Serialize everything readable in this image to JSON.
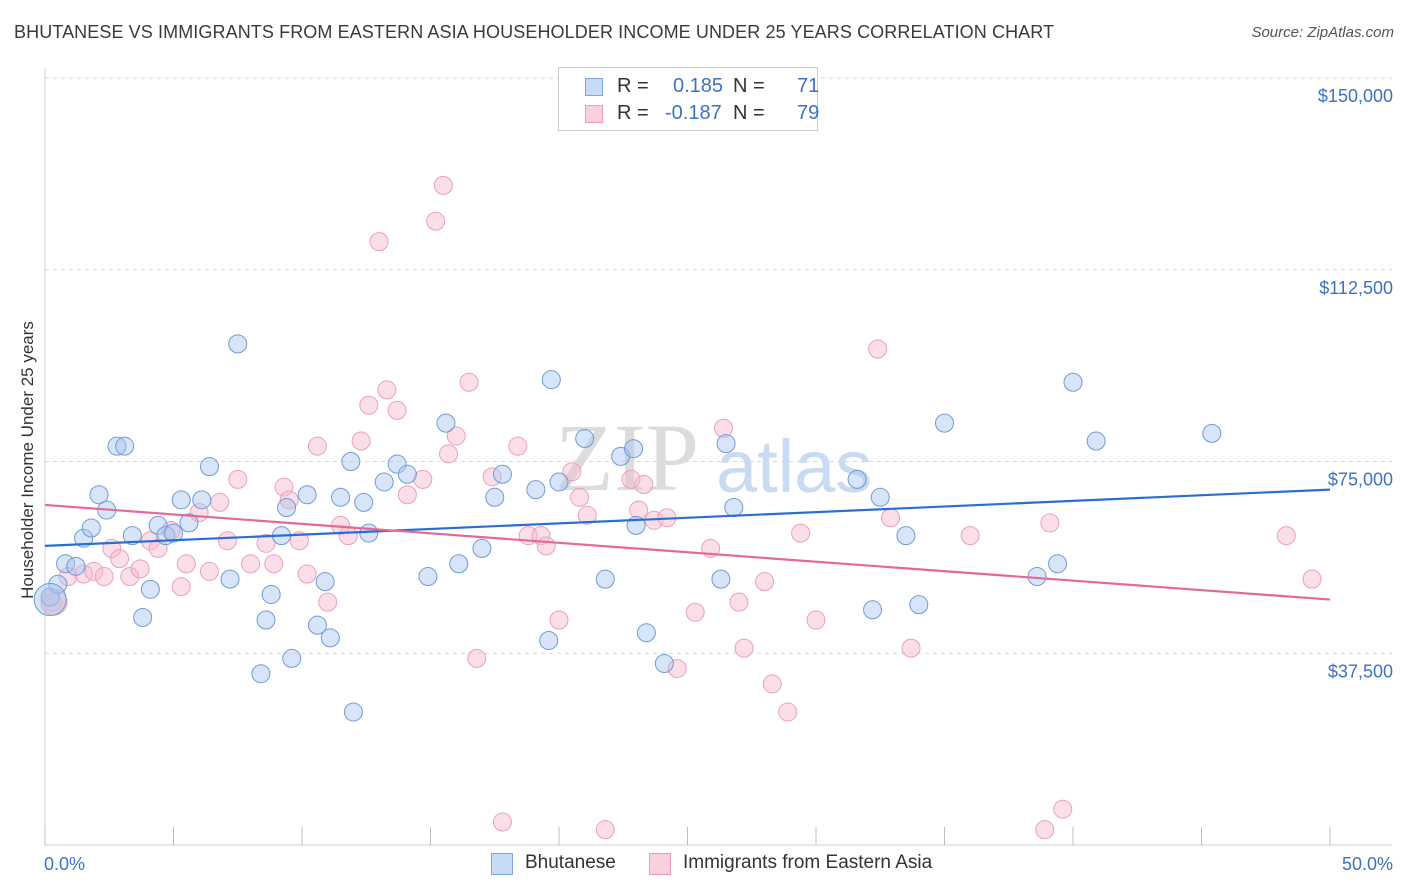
{
  "title": "BHUTANESE VS IMMIGRANTS FROM EASTERN ASIA HOUSEHOLDER INCOME UNDER 25 YEARS CORRELATION CHART",
  "source": "Source: ZipAtlas.com",
  "watermark": {
    "zip": "ZIP",
    "atlas": "atlas"
  },
  "colors": {
    "blue": "#3b73c4",
    "blue_fill": "#a9c6f0",
    "blue_line": "#2a6fd0",
    "pink_fill": "#f7b9cc",
    "pink_line": "#e5689a",
    "grid": "#d8d8d8"
  },
  "legend": {
    "r_label": "R =",
    "n_label": "N =",
    "blue": {
      "r": "0.185",
      "n": "71"
    },
    "pink": {
      "r": "-0.187",
      "n": "79"
    }
  },
  "bottom_legend": {
    "blue": "Bhutanese",
    "pink": "Immigrants from Eastern Asia"
  },
  "chart_data": {
    "type": "scatter",
    "ylabel": "Householder Income Under 25 years",
    "xlim": [
      0,
      50
    ],
    "ylim": [
      0,
      150000
    ],
    "x_tick_labels": [
      "0.0%",
      "50.0%"
    ],
    "y_ticks": [
      37500,
      75000,
      112500,
      150000
    ],
    "y_tick_labels": [
      "$37,500",
      "$75,000",
      "$112,500",
      "$150,000"
    ],
    "grid": "horizontal dashed",
    "series": [
      {
        "name": "Bhutanese",
        "color": "#a9c6f0",
        "trend": {
          "x": [
            0,
            50
          ],
          "y": [
            58500,
            69500
          ]
        },
        "points": [
          [
            0.2,
            48500
          ],
          [
            0.5,
            51000
          ],
          [
            0.8,
            55000
          ],
          [
            1.2,
            54500
          ],
          [
            1.5,
            60000
          ],
          [
            1.8,
            62000
          ],
          [
            2.1,
            68500
          ],
          [
            2.4,
            65500
          ],
          [
            2.8,
            78000
          ],
          [
            3.1,
            78000
          ],
          [
            3.4,
            60500
          ],
          [
            3.8,
            44500
          ],
          [
            4.1,
            50000
          ],
          [
            4.4,
            62500
          ],
          [
            4.7,
            60500
          ],
          [
            5.0,
            61000
          ],
          [
            5.3,
            67500
          ],
          [
            5.6,
            63000
          ],
          [
            6.1,
            67500
          ],
          [
            6.4,
            74000
          ],
          [
            7.2,
            52000
          ],
          [
            7.5,
            98000
          ],
          [
            8.4,
            33500
          ],
          [
            8.6,
            44000
          ],
          [
            8.8,
            49000
          ],
          [
            9.2,
            60500
          ],
          [
            9.4,
            66000
          ],
          [
            9.6,
            36500
          ],
          [
            10.2,
            68500
          ],
          [
            10.6,
            43000
          ],
          [
            10.9,
            51500
          ],
          [
            11.1,
            40500
          ],
          [
            11.5,
            68000
          ],
          [
            11.9,
            75000
          ],
          [
            12.0,
            26000
          ],
          [
            12.4,
            67000
          ],
          [
            12.6,
            61000
          ],
          [
            13.2,
            71000
          ],
          [
            13.7,
            74500
          ],
          [
            14.1,
            72500
          ],
          [
            14.9,
            52500
          ],
          [
            15.6,
            82500
          ],
          [
            16.1,
            55000
          ],
          [
            17.0,
            58000
          ],
          [
            17.5,
            68000
          ],
          [
            17.8,
            72500
          ],
          [
            19.1,
            69500
          ],
          [
            19.6,
            40000
          ],
          [
            19.7,
            91000
          ],
          [
            20.0,
            71000
          ],
          [
            21.0,
            79500
          ],
          [
            21.8,
            52000
          ],
          [
            22.4,
            76000
          ],
          [
            22.9,
            77500
          ],
          [
            23.0,
            62500
          ],
          [
            23.4,
            41500
          ],
          [
            24.1,
            35500
          ],
          [
            26.3,
            52000
          ],
          [
            26.5,
            78500
          ],
          [
            26.8,
            66000
          ],
          [
            31.6,
            71500
          ],
          [
            32.2,
            46000
          ],
          [
            32.5,
            68000
          ],
          [
            33.5,
            60500
          ],
          [
            34.0,
            47000
          ],
          [
            35.0,
            82500
          ],
          [
            38.6,
            52500
          ],
          [
            39.4,
            55000
          ],
          [
            40.0,
            90500
          ],
          [
            40.9,
            79000
          ],
          [
            45.4,
            80500
          ]
        ]
      },
      {
        "name": "Immigrants from Eastern Asia",
        "color": "#f7b9cc",
        "trend": {
          "x": [
            0,
            50
          ],
          "y": [
            66500,
            48000
          ]
        },
        "points": [
          [
            0.3,
            47500
          ],
          [
            0.9,
            52500
          ],
          [
            1.5,
            53000
          ],
          [
            1.9,
            53500
          ],
          [
            2.3,
            52500
          ],
          [
            2.6,
            58000
          ],
          [
            2.9,
            56000
          ],
          [
            3.3,
            52500
          ],
          [
            3.7,
            54000
          ],
          [
            4.1,
            59500
          ],
          [
            4.4,
            58000
          ],
          [
            4.9,
            61500
          ],
          [
            5.3,
            50500
          ],
          [
            5.5,
            55000
          ],
          [
            6.0,
            65000
          ],
          [
            6.4,
            53500
          ],
          [
            6.8,
            67000
          ],
          [
            7.1,
            59500
          ],
          [
            7.5,
            71500
          ],
          [
            8.0,
            55000
          ],
          [
            8.6,
            59000
          ],
          [
            8.9,
            55000
          ],
          [
            9.3,
            70000
          ],
          [
            9.5,
            67500
          ],
          [
            9.9,
            59500
          ],
          [
            10.2,
            53000
          ],
          [
            10.6,
            78000
          ],
          [
            11.0,
            47500
          ],
          [
            11.5,
            62500
          ],
          [
            11.8,
            60500
          ],
          [
            12.3,
            79000
          ],
          [
            12.6,
            86000
          ],
          [
            13.0,
            118000
          ],
          [
            13.3,
            89000
          ],
          [
            13.7,
            85000
          ],
          [
            14.1,
            68500
          ],
          [
            14.7,
            71500
          ],
          [
            15.2,
            122000
          ],
          [
            15.5,
            129000
          ],
          [
            15.7,
            76500
          ],
          [
            16.0,
            80000
          ],
          [
            16.5,
            90500
          ],
          [
            16.8,
            36500
          ],
          [
            17.4,
            72000
          ],
          [
            17.8,
            4500
          ],
          [
            18.4,
            78000
          ],
          [
            18.8,
            60500
          ],
          [
            19.3,
            60500
          ],
          [
            19.5,
            58500
          ],
          [
            20.0,
            44000
          ],
          [
            20.5,
            73000
          ],
          [
            20.8,
            68000
          ],
          [
            21.8,
            3000
          ],
          [
            22.8,
            71500
          ],
          [
            23.1,
            65500
          ],
          [
            23.3,
            70500
          ],
          [
            23.7,
            63500
          ],
          [
            24.2,
            64000
          ],
          [
            24.6,
            34500
          ],
          [
            25.3,
            45500
          ],
          [
            25.9,
            58000
          ],
          [
            26.4,
            81500
          ],
          [
            27.0,
            47500
          ],
          [
            27.2,
            38500
          ],
          [
            28.0,
            51500
          ],
          [
            28.3,
            31500
          ],
          [
            28.9,
            26000
          ],
          [
            29.4,
            61000
          ],
          [
            30.0,
            44000
          ],
          [
            32.4,
            97000
          ],
          [
            32.9,
            64000
          ],
          [
            33.7,
            38500
          ],
          [
            36.0,
            60500
          ],
          [
            38.9,
            3000
          ],
          [
            39.1,
            63000
          ],
          [
            39.6,
            7000
          ],
          [
            48.3,
            60500
          ],
          [
            49.3,
            52000
          ],
          [
            21.1,
            64500
          ]
        ]
      }
    ]
  }
}
